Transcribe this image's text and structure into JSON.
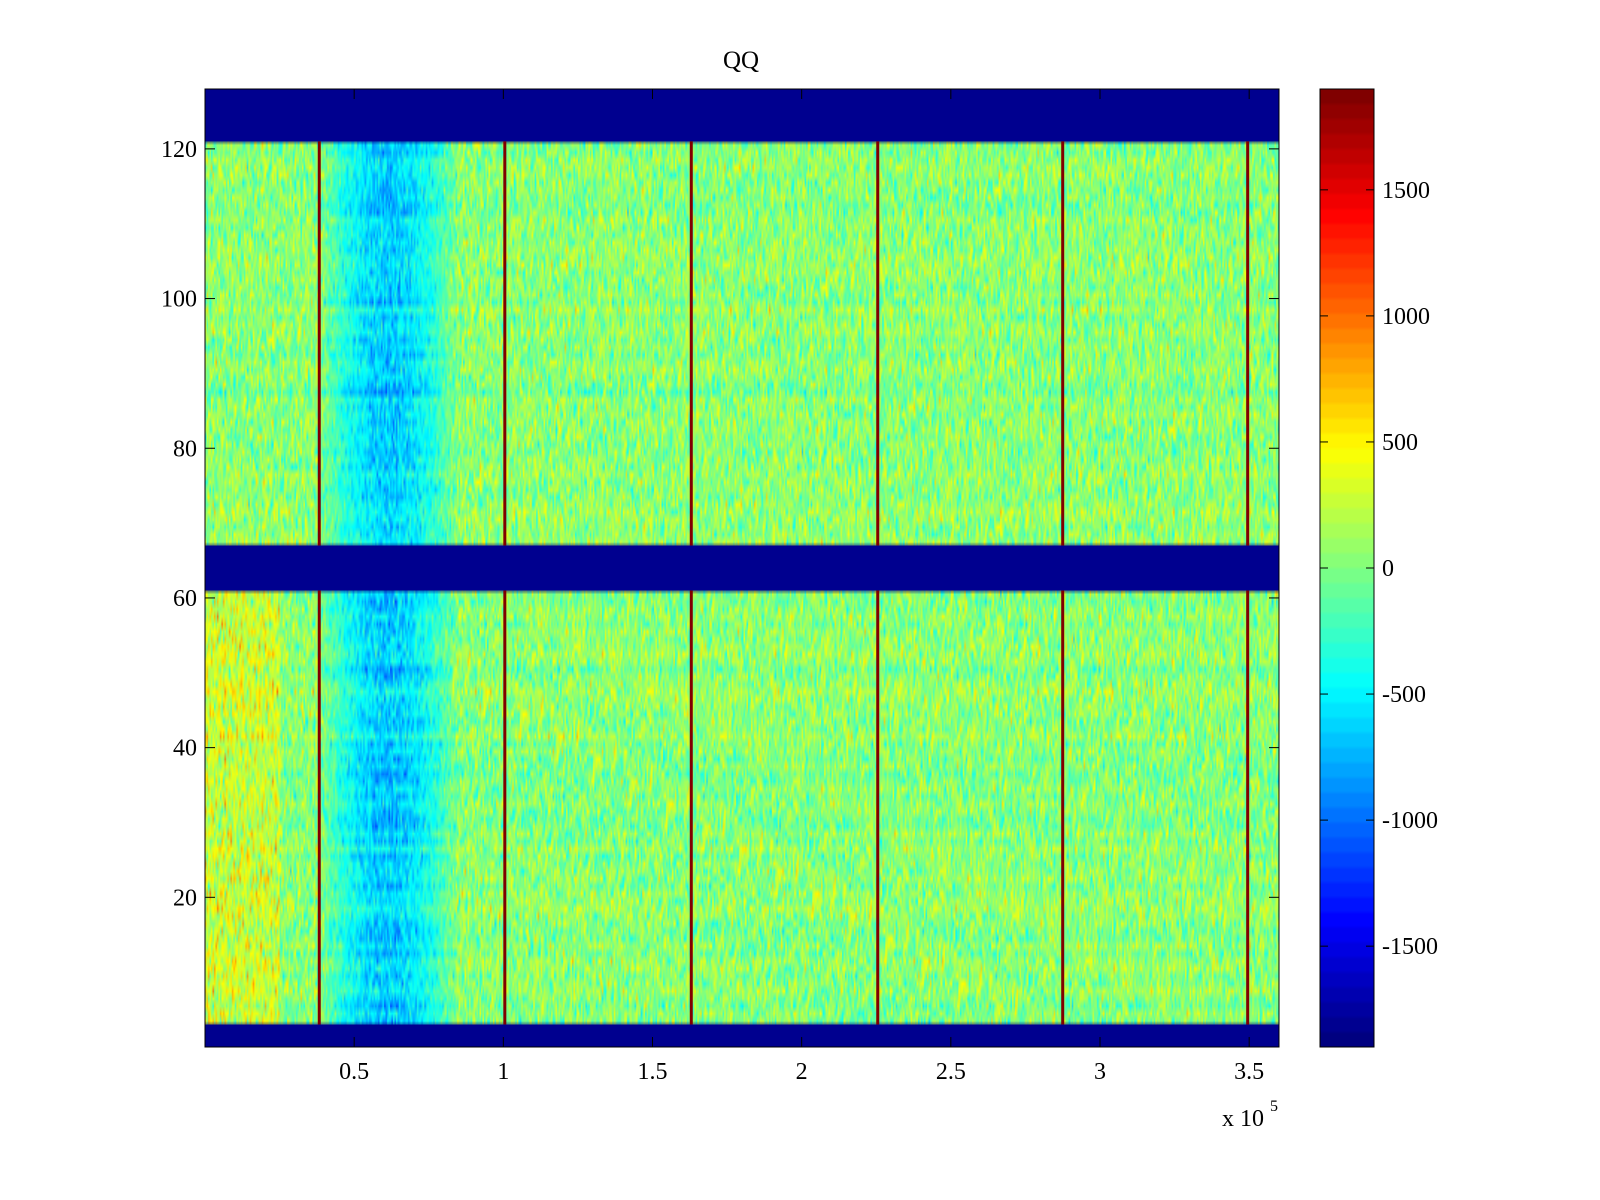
{
  "chart_data": {
    "type": "heatmap",
    "title": "QQ",
    "xlabel": "",
    "ylabel": "",
    "x_multiplier_label": {
      "base": "x 10",
      "exponent": "5"
    },
    "xlim": [
      0,
      3.6
    ],
    "ylim": [
      0,
      128
    ],
    "x_ticks": [
      {
        "value": 0.5,
        "label": "0.5"
      },
      {
        "value": 1,
        "label": "1"
      },
      {
        "value": 1.5,
        "label": "1.5"
      },
      {
        "value": 2,
        "label": "2"
      },
      {
        "value": 2.5,
        "label": "2.5"
      },
      {
        "value": 3,
        "label": "3"
      },
      {
        "value": 3.5,
        "label": "3.5"
      }
    ],
    "y_ticks": [
      {
        "value": 20,
        "label": "20"
      },
      {
        "value": 40,
        "label": "40"
      },
      {
        "value": 60,
        "label": "60"
      },
      {
        "value": 80,
        "label": "80"
      },
      {
        "value": 100,
        "label": "100"
      },
      {
        "value": 120,
        "label": "120"
      }
    ],
    "colormap": "jet",
    "clim": [
      -1900,
      1900
    ],
    "colorbar_ticks": [
      {
        "value": 1500,
        "label": "1500"
      },
      {
        "value": 1000,
        "label": "1000"
      },
      {
        "value": 500,
        "label": "500"
      },
      {
        "value": 0,
        "label": "0"
      },
      {
        "value": -500,
        "label": "-500"
      },
      {
        "value": -1000,
        "label": "-1000"
      },
      {
        "value": -1500,
        "label": "-1500"
      }
    ],
    "masked_row_bands": [
      {
        "y_from": 0,
        "y_to": 3,
        "value": -1900
      },
      {
        "y_from": 61,
        "y_to": 67,
        "value": -1900
      },
      {
        "y_from": 121,
        "y_to": 128,
        "value": -1900
      }
    ],
    "spike_columns_x": [
      0.383,
      1.005,
      1.63,
      2.255,
      2.875,
      3.495
    ],
    "spike_value": 1900,
    "low_region": {
      "x_from": 0.38,
      "x_to": 0.85,
      "mean_value": -650
    },
    "typical_range": [
      -300,
      400
    ]
  },
  "colors": {
    "masked_band": "#00008f",
    "background": "#ffffff",
    "axis": "#000000"
  }
}
